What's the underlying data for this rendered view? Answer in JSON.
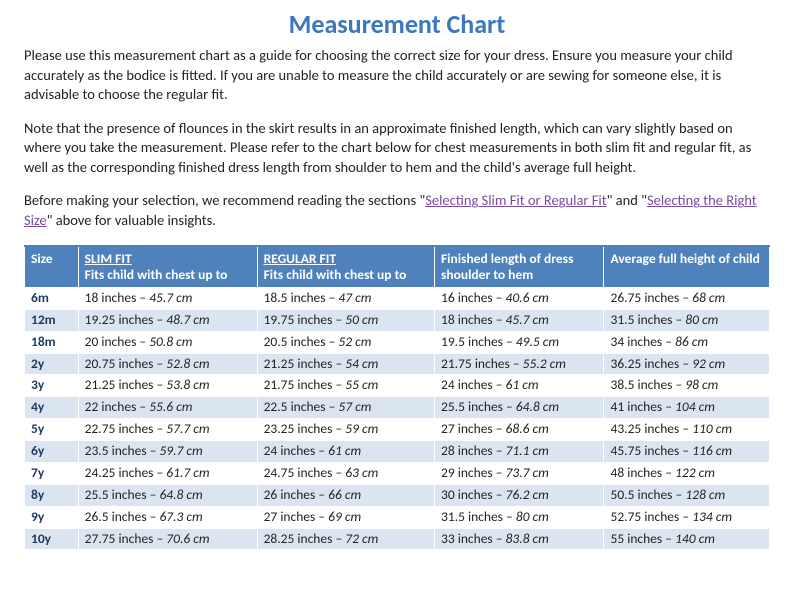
{
  "title": "Measurement Chart",
  "intro": {
    "p1": "Please use this measurement chart as a guide for choosing the correct size for your dress. Ensure you measure your child accurately as the bodice is fitted. If you are unable to measure the child accurately or are sewing for someone else, it is advisable to choose the regular fit.",
    "p2": "Note that the presence of flounces in the skirt results in an approximate finished length, which can vary slightly based on where you take the measurement. Please refer to the chart below for chest measurements in both slim fit and regular fit, as well as the corresponding finished dress length from shoulder to hem and the child's average full height.",
    "p3a": "Before making your selection, we recommend reading the sections \"",
    "link1": "Selecting Slim Fit or Regular Fit",
    "p3b": "\" and \"",
    "link2": "Selecting the Right Size",
    "p3c": "\" above for valuable insights."
  },
  "headers": {
    "size": "Size",
    "slim_title": "SLIM FIT",
    "slim_desc": "Fits child with chest up to",
    "reg_title": "REGULAR FIT",
    "reg_desc": "Fits child with chest up to",
    "len": "Finished length of dress shoulder to hem",
    "hgt": "Average full height of child"
  },
  "rows": [
    {
      "size": "6m",
      "slim_in": "18 inches",
      "slim_cm": "45.7 cm",
      "reg_in": "18.5 inches",
      "reg_cm": "47 cm",
      "len_in": "16 inches",
      "len_cm": "40.6 cm",
      "hgt_in": "26.75 inches",
      "hgt_cm": "68 cm"
    },
    {
      "size": "12m",
      "slim_in": "19.25 inches",
      "slim_cm": "48.7 cm",
      "reg_in": "19.75 inches",
      "reg_cm": "50 cm",
      "len_in": "18 inches",
      "len_cm": "45.7 cm",
      "hgt_in": "31.5 inches",
      "hgt_cm": "80 cm"
    },
    {
      "size": "18m",
      "slim_in": "20 inches",
      "slim_cm": "50.8 cm",
      "reg_in": "20.5 inches",
      "reg_cm": "52 cm",
      "len_in": "19.5 inches",
      "len_cm": "49.5 cm",
      "hgt_in": "34 inches",
      "hgt_cm": "86 cm"
    },
    {
      "size": "2y",
      "slim_in": "20.75 inches",
      "slim_cm": "52.8 cm",
      "reg_in": "21.25 inches",
      "reg_cm": "54 cm",
      "len_in": "21.75 inches",
      "len_cm": "55.2 cm",
      "hgt_in": "36.25 inches",
      "hgt_cm": "92 cm"
    },
    {
      "size": "3y",
      "slim_in": "21.25 inches",
      "slim_cm": "53.8 cm",
      "reg_in": "21.75 inches",
      "reg_cm": "55 cm",
      "len_in": "24 inches",
      "len_cm": "61 cm",
      "hgt_in": "38.5 inches",
      "hgt_cm": "98 cm"
    },
    {
      "size": "4y",
      "slim_in": "22 inches",
      "slim_cm": "55.6 cm",
      "reg_in": "22.5 inches",
      "reg_cm": "57 cm",
      "len_in": "25.5 inches",
      "len_cm": "64.8 cm",
      "hgt_in": "41 inches",
      "hgt_cm": "104 cm"
    },
    {
      "size": "5y",
      "slim_in": "22.75 inches",
      "slim_cm": "57.7 cm",
      "reg_in": "23.25 inches",
      "reg_cm": "59 cm",
      "len_in": "27 inches",
      "len_cm": "68.6 cm",
      "hgt_in": "43.25 inches",
      "hgt_cm": "110 cm"
    },
    {
      "size": "6y",
      "slim_in": "23.5 inches",
      "slim_cm": "59.7 cm",
      "reg_in": "24 inches",
      "reg_cm": "61 cm",
      "len_in": "28 inches",
      "len_cm": "71.1 cm",
      "hgt_in": "45.75 inches",
      "hgt_cm": "116 cm"
    },
    {
      "size": "7y",
      "slim_in": "24.25 inches",
      "slim_cm": "61.7 cm",
      "reg_in": "24.75 inches",
      "reg_cm": "63 cm",
      "len_in": "29 inches",
      "len_cm": "73.7 cm",
      "hgt_in": "48 inches",
      "hgt_cm": "122 cm"
    },
    {
      "size": "8y",
      "slim_in": "25.5 inches",
      "slim_cm": "64.8 cm",
      "reg_in": "26 inches",
      "reg_cm": "66 cm",
      "len_in": "30 inches",
      "len_cm": "76.2 cm",
      "hgt_in": "50.5 inches",
      "hgt_cm": "128 cm"
    },
    {
      "size": "9y",
      "slim_in": "26.5 inches",
      "slim_cm": "67.3 cm",
      "reg_in": "27 inches",
      "reg_cm": "69 cm",
      "len_in": "31.5 inches",
      "len_cm": "80 cm",
      "hgt_in": "52.75 inches",
      "hgt_cm": "134 cm"
    },
    {
      "size": "10y",
      "slim_in": "27.75 inches",
      "slim_cm": "70.6 cm",
      "reg_in": "28.25 inches",
      "reg_cm": "72 cm",
      "len_in": "33 inches",
      "len_cm": "83.8 cm",
      "hgt_in": "55 inches",
      "hgt_cm": "140 cm"
    }
  ],
  "colors": {
    "title": "#3c78c0",
    "header_bg": "#4f81bd",
    "row_alt": "#dbe5f1",
    "link": "#7a4aa0",
    "size_text": "#1f3a5f"
  }
}
